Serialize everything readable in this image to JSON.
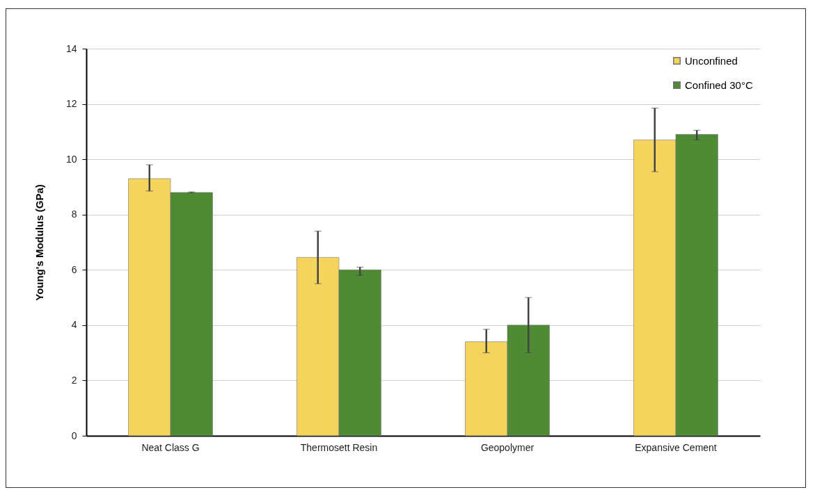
{
  "chart_data": {
    "type": "bar",
    "ylabel": "Young's Modulus (GPa)",
    "categories": [
      "Neat Class G",
      "Thermosett Resin",
      "Geopolymer",
      "Expansive Cement"
    ],
    "series": [
      {
        "name": "Unconfined",
        "color": "#f5d45e",
        "values": [
          9.3,
          6.45,
          3.4,
          10.7
        ],
        "errors": [
          [
            8.85,
            9.8
          ],
          [
            5.5,
            7.4
          ],
          [
            3.0,
            3.85
          ],
          [
            9.55,
            11.85
          ]
        ]
      },
      {
        "name": "Confined 30°C",
        "color": "#4f8a34",
        "values": [
          8.8,
          6.0,
          4.0,
          10.9
        ],
        "errors": [
          [
            8.78,
            8.82
          ],
          [
            5.8,
            6.1
          ],
          [
            3.0,
            5.0
          ],
          [
            10.7,
            11.05
          ]
        ]
      }
    ],
    "ylim": [
      0,
      14
    ],
    "yticks": [
      0,
      2,
      4,
      6,
      8,
      10,
      12,
      14
    ],
    "grid": "y",
    "legend": "top right"
  }
}
